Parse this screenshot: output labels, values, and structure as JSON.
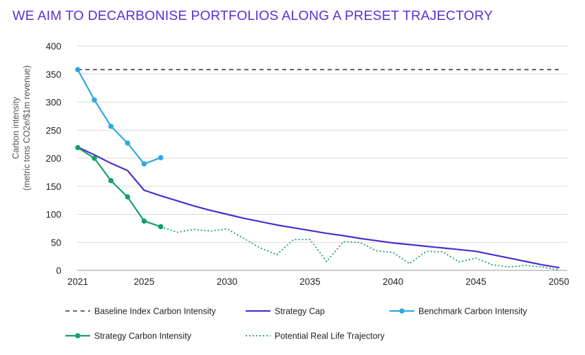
{
  "title": "WE AIM TO DECARBONISE PORTFOLIOS ALONG A PRESET TRAJECTORY",
  "chart_data": {
    "type": "line",
    "title": "WE AIM TO DECARBONISE PORTFOLIOS ALONG A PRESET TRAJECTORY",
    "ylabel_line1": "Carbon intensity",
    "ylabel_line2": "(metric tons CO2e/$1m revenue)",
    "xlim": [
      2021,
      2050
    ],
    "ylim": [
      0,
      400
    ],
    "x_ticks": [
      2021,
      2025,
      2030,
      2035,
      2040,
      2045,
      2050
    ],
    "y_ticks": [
      0,
      50,
      100,
      150,
      200,
      250,
      300,
      350,
      400
    ],
    "grid": "horizontal",
    "legend_position": "bottom",
    "series": [
      {
        "name": "Baseline Index Carbon Intensity",
        "color": "#555555",
        "style": "dashed",
        "markers": false,
        "x": [
          2021,
          2050
        ],
        "y": [
          358,
          358
        ]
      },
      {
        "name": "Strategy Cap",
        "color": "#4a2ccf",
        "style": "solid",
        "markers": false,
        "x": [
          2021,
          2022,
          2023,
          2024,
          2025,
          2026,
          2027,
          2028,
          2029,
          2030,
          2031,
          2032,
          2033,
          2034,
          2035,
          2036,
          2037,
          2038,
          2039,
          2040,
          2041,
          2042,
          2043,
          2044,
          2045,
          2046,
          2047,
          2048,
          2049,
          2050
        ],
        "y": [
          220,
          206,
          191,
          178,
          143,
          133,
          124,
          115,
          107,
          100,
          93,
          87,
          81,
          76,
          71,
          66,
          62,
          57,
          53,
          49,
          46,
          43,
          40,
          37,
          34,
          28,
          22,
          16,
          10,
          5
        ]
      },
      {
        "name": "Benchmark Carbon Intensity",
        "color": "#2fa8e4",
        "style": "solid",
        "markers": true,
        "x": [
          2021,
          2022,
          2023,
          2024,
          2025,
          2026
        ],
        "y": [
          358,
          304,
          257,
          227,
          190,
          201
        ]
      },
      {
        "name": "Strategy Carbon Intensity",
        "color": "#14a06a",
        "style": "solid",
        "markers": true,
        "x": [
          2021,
          2022,
          2023,
          2024,
          2025,
          2026
        ],
        "y": [
          219,
          200,
          160,
          131,
          88,
          78
        ]
      },
      {
        "name": "Potential Real Life Trajectory",
        "color": "#14a06a",
        "style": "dotted",
        "markers": false,
        "x": [
          2026,
          2027,
          2028,
          2029,
          2030,
          2031,
          2032,
          2033,
          2034,
          2035,
          2036,
          2037,
          2038,
          2039,
          2040,
          2041,
          2042,
          2043,
          2044,
          2045,
          2046,
          2047,
          2048,
          2049,
          2050
        ],
        "y": [
          78,
          68,
          73,
          70,
          74,
          57,
          40,
          28,
          55,
          55,
          16,
          51,
          50,
          35,
          32,
          12,
          34,
          33,
          15,
          22,
          10,
          6,
          9,
          6,
          1
        ]
      }
    ]
  }
}
